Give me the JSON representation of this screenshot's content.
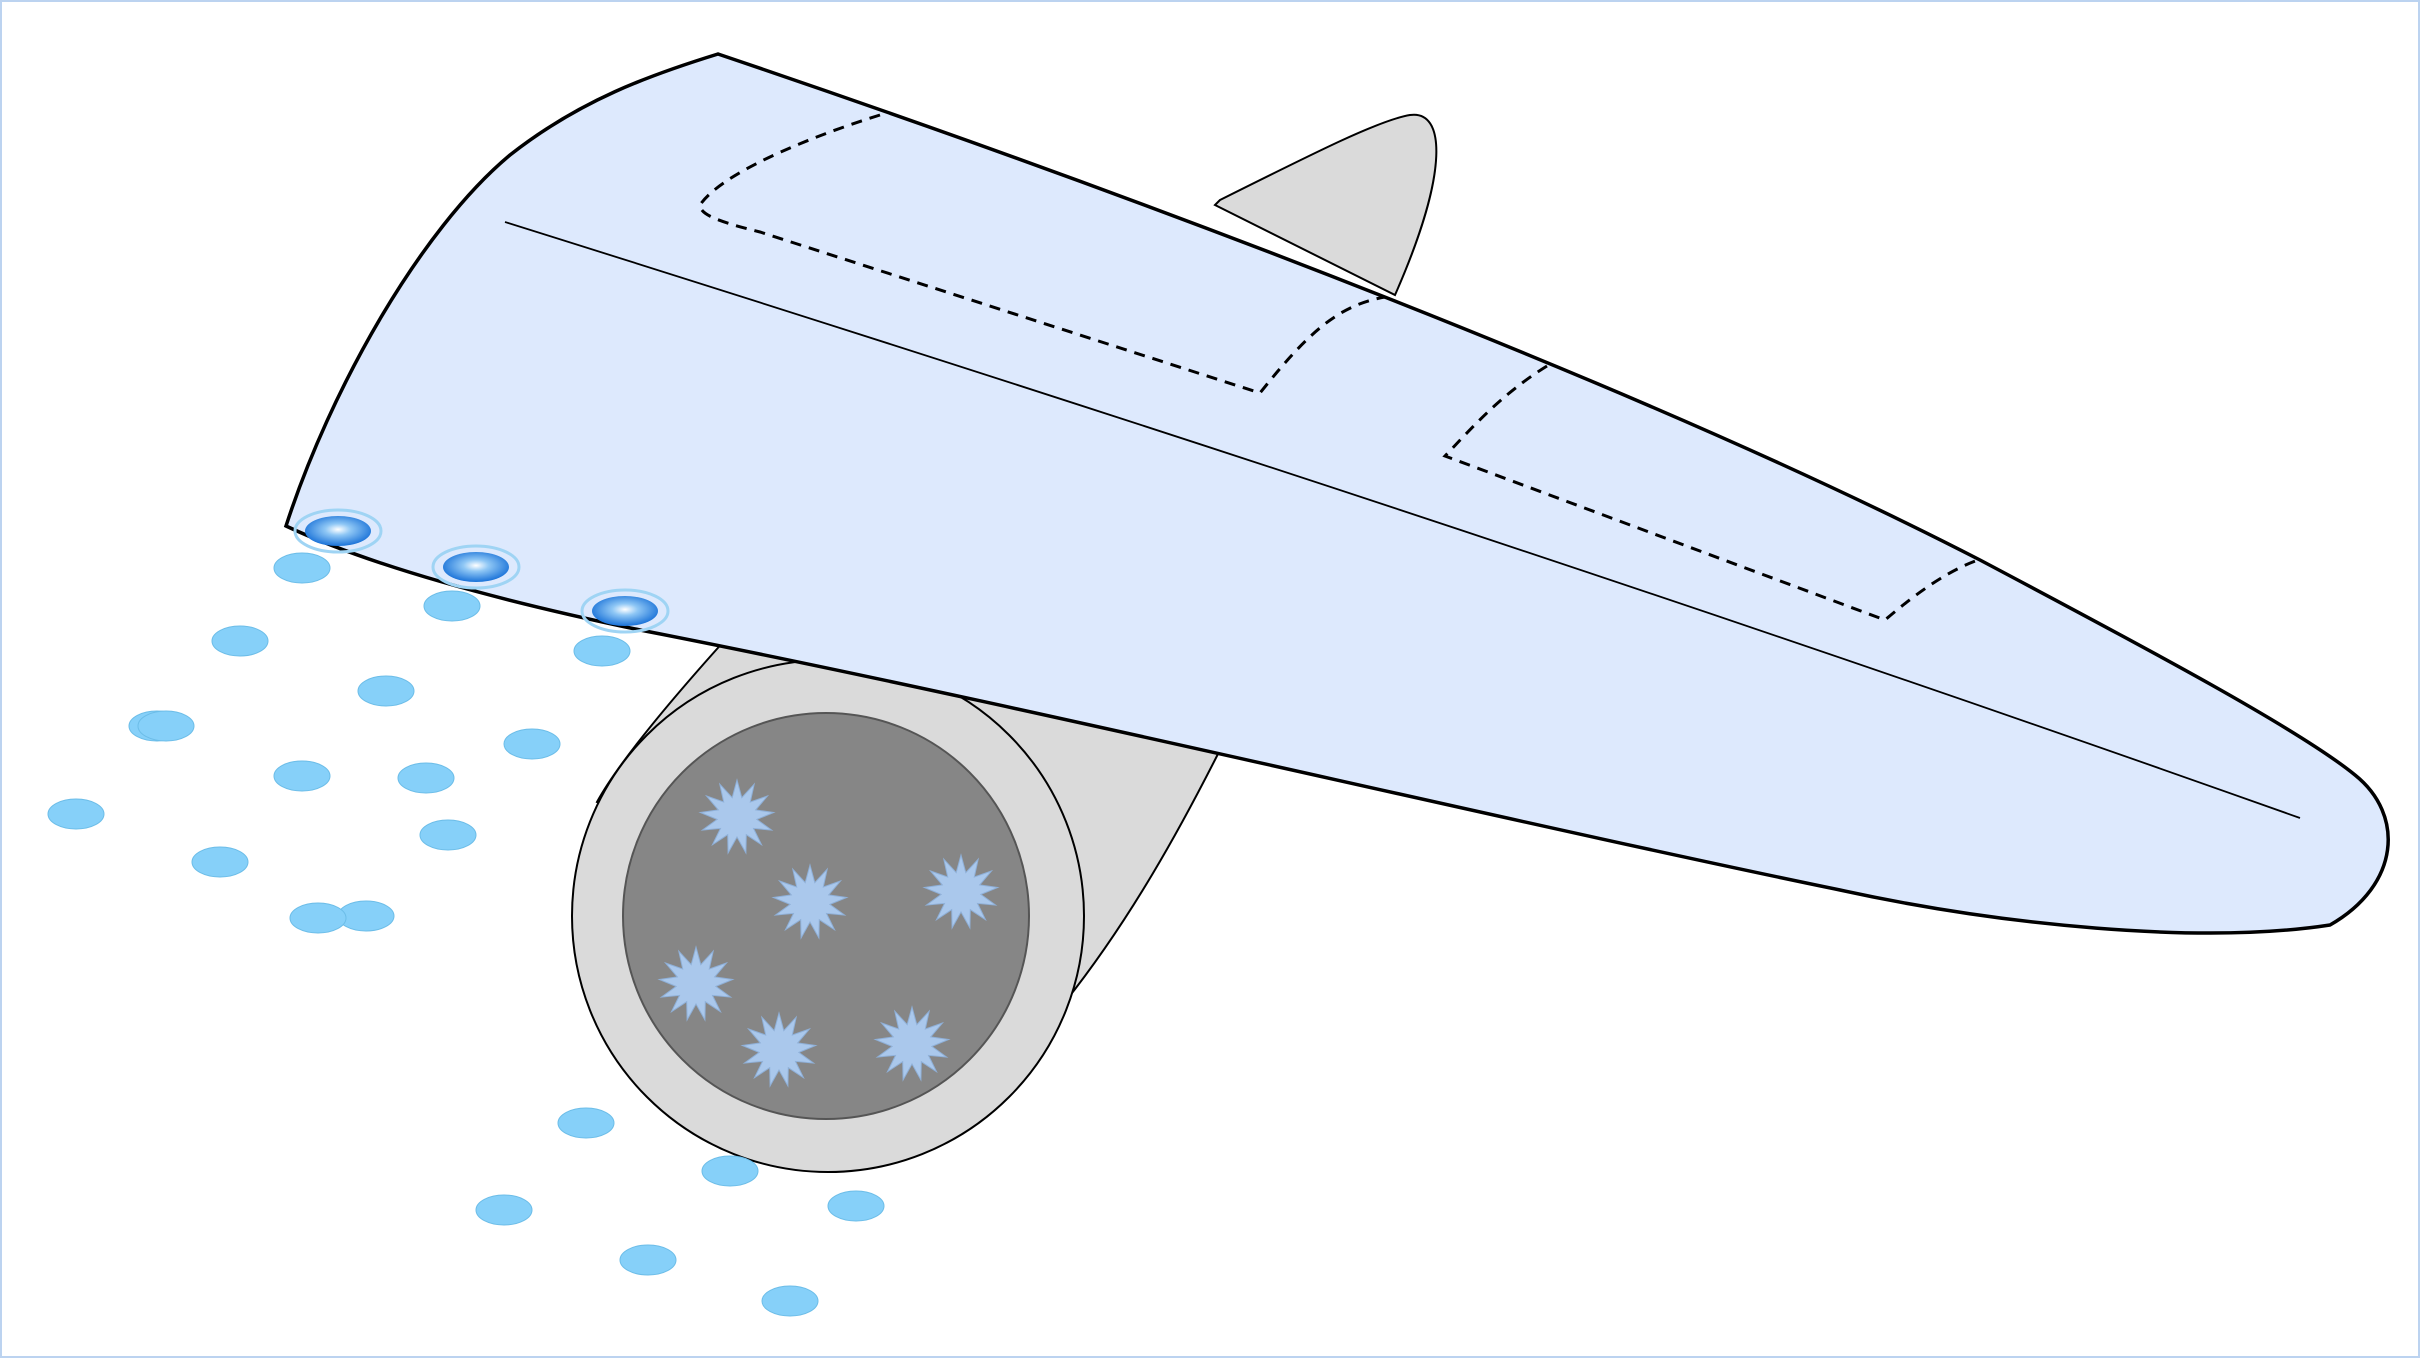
{
  "diagram": {
    "colors": {
      "background": "#ffffff",
      "frame": "#bcd3f0",
      "wing_fill": "#dde9fd",
      "wing_stroke": "#000000",
      "engine_housing": "#dadada",
      "engine_core": "#868686",
      "ice_crystal": "#aac8ec",
      "droplet": "#86d0f9",
      "droplet_stroke": "#6cbde8",
      "nozzle": "#1a72d8",
      "nozzle_ring": "#9fd4f4"
    },
    "nozzles": [
      {
        "name": "nozzle-1"
      },
      {
        "name": "nozzle-2"
      },
      {
        "name": "nozzle-3"
      }
    ],
    "ice_crystal_count": 6,
    "droplet_count": 21
  }
}
